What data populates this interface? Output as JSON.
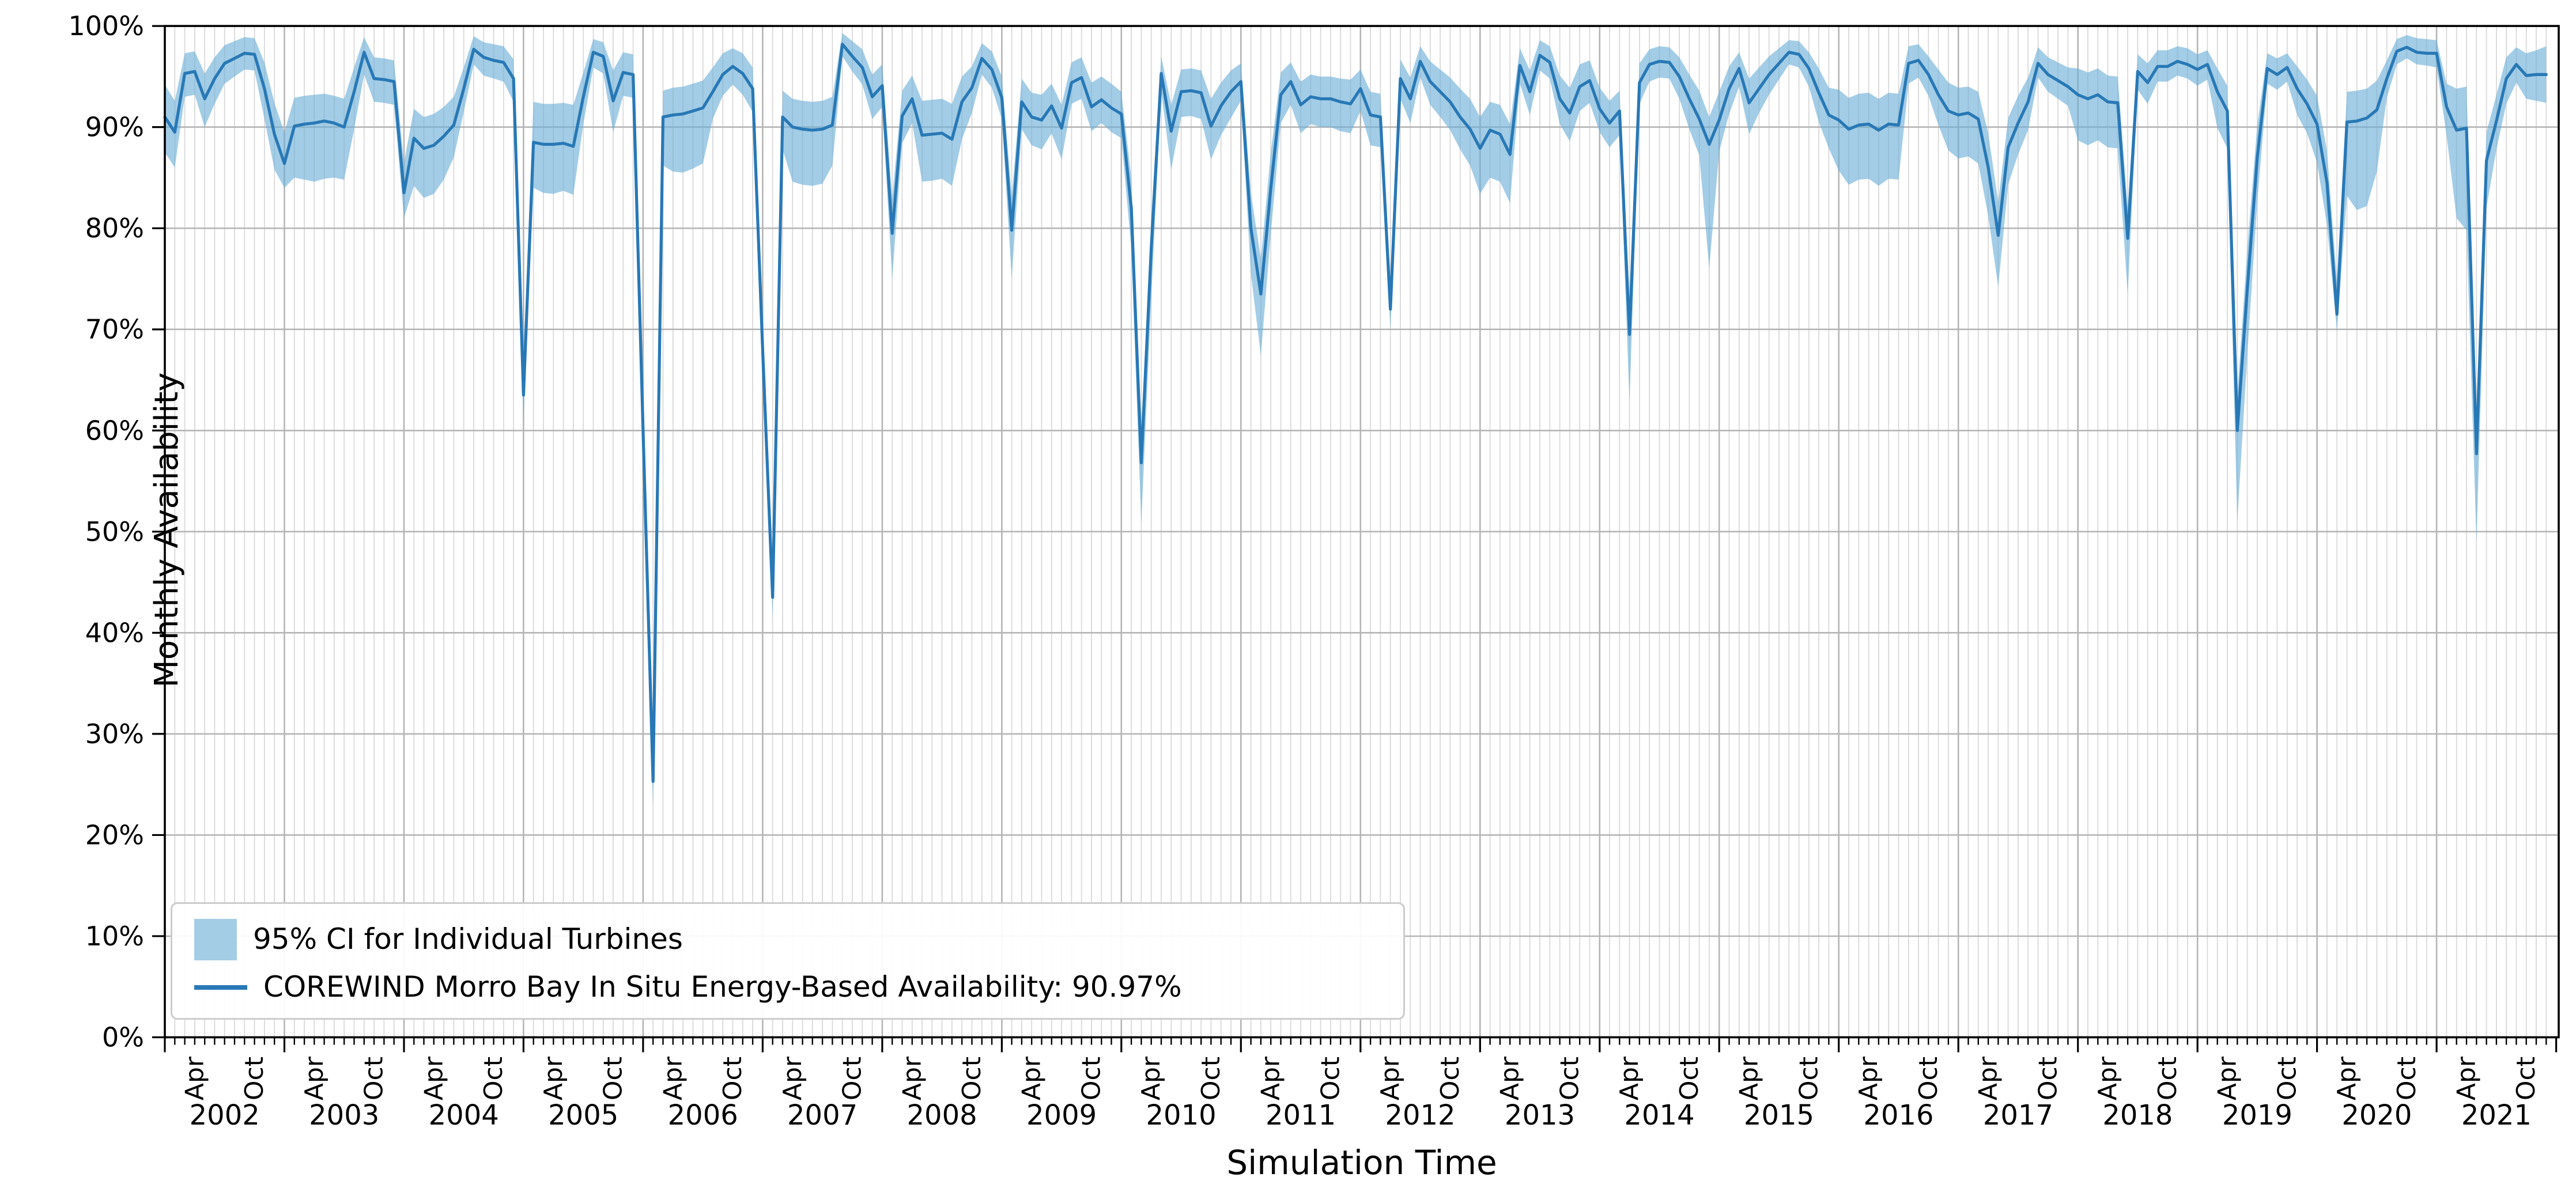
{
  "chart": {
    "title": "",
    "xlabel": "Simulation Time",
    "ylabel": "Monthly Availability",
    "legend": {
      "band_label": "95% CI for Individual Turbines",
      "line_label": "COREWIND Morro Bay In Situ Energy-Based Availability: 90.97%"
    },
    "colors": {
      "line": "#2878b5",
      "band": "#6baed6",
      "band_opacity": 0.62,
      "grid_minor": "#d9d9d9",
      "grid_major": "#b5b5b5",
      "spine": "#000000",
      "text": "#000000",
      "legend_patch": "#a3cde5"
    },
    "y_tick_labels": [
      "0%",
      "10%",
      "20%",
      "30%",
      "40%",
      "50%",
      "60%",
      "70%",
      "80%",
      "90%",
      "100%"
    ],
    "x_month_tick_labels": [
      "Apr",
      "Oct"
    ],
    "x_month_tick_indices": [
      3,
      9
    ]
  },
  "chart_data": {
    "type": "line",
    "title": "",
    "xlabel": "Simulation Time",
    "ylabel": "Monthly Availability",
    "ylim": [
      0,
      100
    ],
    "y_unit": "%",
    "grid": "on",
    "legend_position": "lower left",
    "x_start": "2002-01",
    "x_end": "2021-12",
    "years": [
      2002,
      2003,
      2004,
      2005,
      2006,
      2007,
      2008,
      2009,
      2010,
      2011,
      2012,
      2013,
      2014,
      2015,
      2016,
      2017,
      2018,
      2019,
      2020,
      2021
    ],
    "overall_energy_based_availability_pct": 90.97,
    "series": [
      {
        "name": "COREWIND Morro Bay In Situ Energy-Based Availability",
        "monthly_mean_pct": [
          91.0,
          89.5,
          95.3,
          95.5,
          92.8,
          94.8,
          96.3,
          96.8,
          97.3,
          97.2,
          93.8,
          89.3,
          86.4,
          90.1,
          90.3,
          90.4,
          90.6,
          90.4,
          90.0,
          93.5,
          97.4,
          94.8,
          94.7,
          94.5,
          83.5,
          88.9,
          87.9,
          88.2,
          89.1,
          90.2,
          93.8,
          97.7,
          96.9,
          96.6,
          96.4,
          94.8,
          63.5,
          88.5,
          88.3,
          88.3,
          88.4,
          88.1,
          93.0,
          97.4,
          97.0,
          92.6,
          95.4,
          95.2,
          60.0,
          25.3,
          91.0,
          91.2,
          91.3,
          91.6,
          91.9,
          93.5,
          95.2,
          96.0,
          95.3,
          93.8,
          68.0,
          43.5,
          91.0,
          90.0,
          89.8,
          89.7,
          89.8,
          90.2,
          98.2,
          97.0,
          95.9,
          93.0,
          94.1,
          79.5,
          91.1,
          92.8,
          89.2,
          89.3,
          89.4,
          88.8,
          92.5,
          93.9,
          96.8,
          95.7,
          92.9,
          79.8,
          92.5,
          91.0,
          90.7,
          92.1,
          89.9,
          94.4,
          94.9,
          92.0,
          92.7,
          91.9,
          91.3,
          82.0,
          56.8,
          78.0,
          95.3,
          89.6,
          93.5,
          93.6,
          93.4,
          90.1,
          92.1,
          93.5,
          94.5,
          80.0,
          73.5,
          84.0,
          93.2,
          94.5,
          92.2,
          93.0,
          92.8,
          92.8,
          92.5,
          92.3,
          93.8,
          91.2,
          91.0,
          72.0,
          94.8,
          92.8,
          96.5,
          94.5,
          93.5,
          92.5,
          91.0,
          89.8,
          87.9,
          89.7,
          89.3,
          87.3,
          96.1,
          93.5,
          97.1,
          96.4,
          92.8,
          91.4,
          94.0,
          94.6,
          91.8,
          90.4,
          91.6,
          69.5,
          94.4,
          96.2,
          96.5,
          96.4,
          95.0,
          92.8,
          90.8,
          88.3,
          90.7,
          93.8,
          95.8,
          92.4,
          93.8,
          95.2,
          96.3,
          97.4,
          97.2,
          95.8,
          93.4,
          91.2,
          90.7,
          89.8,
          90.2,
          90.3,
          89.7,
          90.3,
          90.2,
          96.3,
          96.6,
          95.2,
          93.2,
          91.6,
          91.2,
          91.4,
          90.8,
          86.0,
          79.3,
          88.0,
          90.4,
          92.5,
          96.3,
          95.2,
          94.6,
          94.0,
          93.2,
          92.8,
          93.2,
          92.5,
          92.4,
          79.0,
          95.5,
          94.4,
          96.0,
          96.0,
          96.5,
          96.2,
          95.7,
          96.2,
          93.5,
          91.6,
          60.0,
          74.0,
          87.0,
          95.8,
          95.2,
          95.9,
          93.8,
          92.3,
          90.3,
          84.5,
          71.5,
          90.5,
          90.6,
          90.9,
          91.7,
          94.8,
          97.5,
          97.9,
          97.4,
          97.3,
          97.3,
          92.0,
          89.7,
          89.9,
          57.7,
          86.7,
          90.6,
          94.8,
          96.2,
          95.1,
          95.2,
          95.2
        ],
        "ci95_low_pct": [
          87.5,
          86.0,
          93.0,
          93.2,
          90.0,
          92.3,
          94.3,
          95.0,
          95.7,
          95.6,
          90.8,
          85.8,
          84.0,
          85.0,
          84.8,
          84.6,
          84.9,
          85.0,
          84.8,
          89.8,
          95.2,
          92.5,
          92.4,
          92.2,
          81.0,
          84.2,
          83.0,
          83.4,
          84.8,
          87.0,
          91.5,
          96.2,
          95.1,
          94.8,
          94.5,
          92.5,
          61.0,
          84.0,
          83.5,
          83.4,
          83.7,
          83.3,
          90.3,
          95.9,
          95.3,
          89.5,
          93.1,
          92.9,
          56.5,
          22.8,
          86.2,
          85.6,
          85.5,
          85.9,
          86.4,
          90.8,
          93.1,
          94.2,
          93.2,
          91.5,
          64.5,
          41.5,
          87.8,
          84.6,
          84.3,
          84.2,
          84.4,
          86.2,
          97.0,
          95.5,
          94.2,
          90.8,
          92.0,
          75.0,
          88.4,
          90.4,
          84.6,
          84.7,
          84.9,
          84.2,
          88.8,
          91.4,
          95.2,
          93.9,
          90.8,
          75.0,
          89.8,
          88.2,
          87.8,
          89.4,
          86.8,
          92.3,
          92.8,
          89.6,
          90.4,
          89.5,
          88.9,
          78.0,
          50.8,
          73.0,
          93.5,
          85.8,
          91.0,
          91.1,
          90.8,
          86.8,
          89.2,
          90.9,
          92.6,
          75.5,
          67.4,
          79.5,
          90.4,
          92.2,
          89.4,
          90.3,
          90.0,
          90.0,
          89.6,
          89.4,
          91.6,
          88.2,
          88.0,
          70.0,
          92.8,
          90.4,
          94.9,
          92.2,
          91.0,
          89.7,
          87.8,
          86.2,
          83.4,
          85.0,
          84.6,
          82.5,
          94.3,
          91.2,
          95.6,
          94.8,
          90.3,
          88.6,
          91.6,
          92.4,
          89.5,
          88.0,
          89.2,
          62.8,
          92.3,
          94.5,
          94.9,
          94.8,
          92.8,
          89.8,
          87.2,
          76.0,
          87.6,
          91.3,
          94.0,
          89.3,
          91.4,
          93.2,
          94.7,
          96.2,
          95.9,
          94.0,
          90.5,
          87.9,
          85.7,
          84.3,
          84.8,
          84.9,
          84.2,
          84.9,
          84.8,
          94.3,
          94.9,
          93.1,
          90.2,
          87.7,
          86.9,
          87.1,
          86.4,
          81.2,
          74.2,
          84.3,
          87.3,
          89.7,
          94.9,
          93.5,
          92.8,
          92.1,
          88.7,
          88.2,
          88.7,
          88.0,
          87.9,
          73.5,
          93.7,
          92.3,
          94.5,
          94.5,
          95.1,
          94.8,
          94.1,
          94.7,
          89.9,
          87.9,
          51.0,
          67.5,
          82.6,
          94.3,
          93.7,
          94.5,
          91.2,
          89.4,
          86.5,
          80.3,
          69.8,
          83.2,
          81.8,
          82.2,
          85.6,
          92.9,
          96.2,
          96.8,
          96.2,
          96.1,
          95.9,
          89.2,
          81.0,
          79.8,
          49.0,
          82.0,
          87.8,
          92.3,
          94.4,
          92.8,
          92.6,
          92.4
        ],
        "ci95_high_pct": [
          94.2,
          92.6,
          97.3,
          97.5,
          95.3,
          96.9,
          98.1,
          98.5,
          98.9,
          98.8,
          96.4,
          92.4,
          89.5,
          92.9,
          93.1,
          93.2,
          93.3,
          93.1,
          92.8,
          95.9,
          98.9,
          96.9,
          96.8,
          96.6,
          86.5,
          91.8,
          91.0,
          91.3,
          92.0,
          93.0,
          95.9,
          99.0,
          98.4,
          98.2,
          98.0,
          96.7,
          66.5,
          92.5,
          92.3,
          92.3,
          92.4,
          92.2,
          95.4,
          98.7,
          98.4,
          95.6,
          97.4,
          97.2,
          63.5,
          28.0,
          93.6,
          93.9,
          94.0,
          94.3,
          94.6,
          95.9,
          97.3,
          97.8,
          97.3,
          95.9,
          71.5,
          46.0,
          93.6,
          92.8,
          92.6,
          92.5,
          92.6,
          93.0,
          99.3,
          98.5,
          97.7,
          95.2,
          96.2,
          83.0,
          93.6,
          95.1,
          92.6,
          92.7,
          92.8,
          92.3,
          95.0,
          96.0,
          98.3,
          97.5,
          95.0,
          83.2,
          94.8,
          93.4,
          93.2,
          94.3,
          92.2,
          96.4,
          96.9,
          94.4,
          95.0,
          94.3,
          93.5,
          85.0,
          60.0,
          81.0,
          97.0,
          92.2,
          95.7,
          95.8,
          95.6,
          92.8,
          94.4,
          95.6,
          96.3,
          83.5,
          77.0,
          87.5,
          95.4,
          96.4,
          94.5,
          95.2,
          95.0,
          95.0,
          94.8,
          94.7,
          95.7,
          93.5,
          93.3,
          74.5,
          96.7,
          94.9,
          98.0,
          96.5,
          95.7,
          94.9,
          93.8,
          92.8,
          91.0,
          92.5,
          92.2,
          90.3,
          97.8,
          95.6,
          98.6,
          98.0,
          95.1,
          93.9,
          96.2,
          96.6,
          93.9,
          92.6,
          93.6,
          72.3,
          96.3,
          97.7,
          98.0,
          97.9,
          96.9,
          95.2,
          93.6,
          91.0,
          93.5,
          96.0,
          97.4,
          94.8,
          95.9,
          97.0,
          97.8,
          98.6,
          98.5,
          97.4,
          95.8,
          93.9,
          93.7,
          92.9,
          93.3,
          93.4,
          92.8,
          93.4,
          93.3,
          98.0,
          98.2,
          97.0,
          95.7,
          94.4,
          93.9,
          94.0,
          93.5,
          89.4,
          82.6,
          90.9,
          93.1,
          94.9,
          97.9,
          96.9,
          96.4,
          95.9,
          95.8,
          95.4,
          95.8,
          95.1,
          95.0,
          82.0,
          97.2,
          96.3,
          97.6,
          97.6,
          98.0,
          97.8,
          97.2,
          97.6,
          95.8,
          94.1,
          63.5,
          78.0,
          90.2,
          97.3,
          96.8,
          97.3,
          96.0,
          94.7,
          93.1,
          87.7,
          74.8,
          93.5,
          93.6,
          93.8,
          94.6,
          96.6,
          98.7,
          99.1,
          98.8,
          98.7,
          98.6,
          94.3,
          93.8,
          94.0,
          61.0,
          89.5,
          93.2,
          96.9,
          97.9,
          97.3,
          97.6,
          98.0
        ]
      }
    ]
  }
}
